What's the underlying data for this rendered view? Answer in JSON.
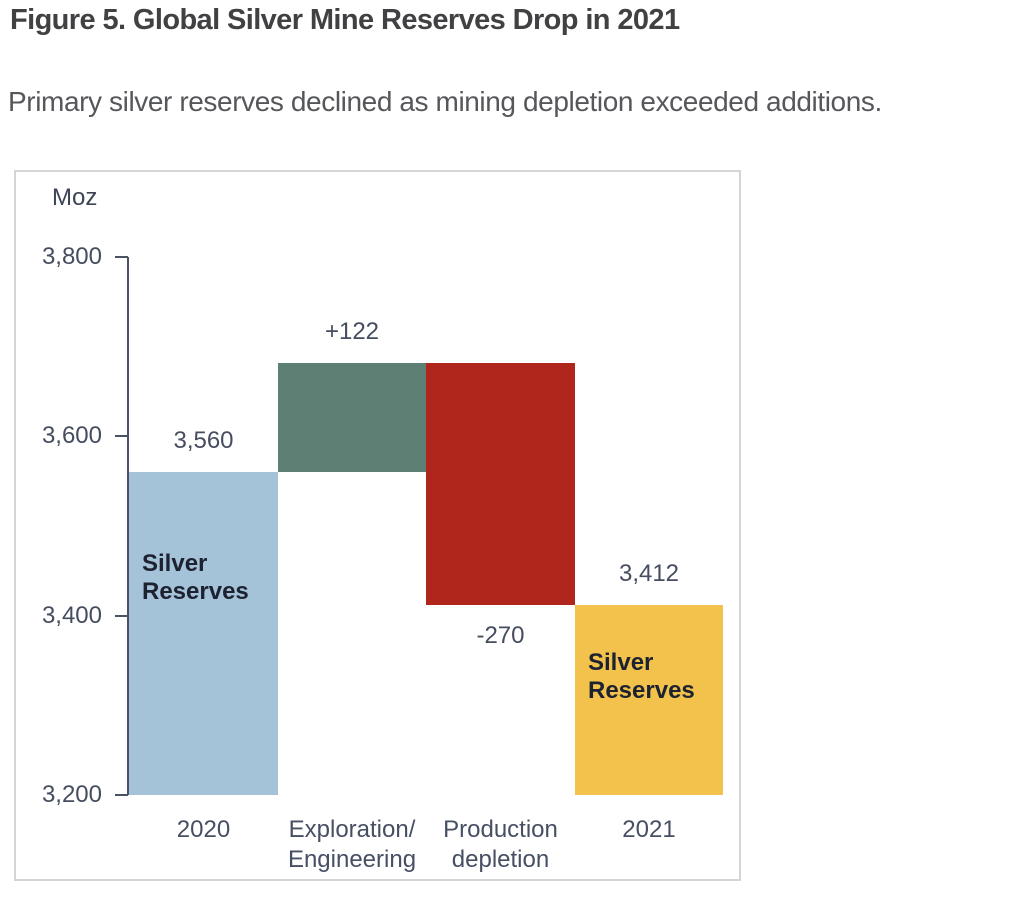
{
  "figure": {
    "title": "Figure 5. Global Silver Mine Reserves Drop in 2021",
    "subtitle": "Primary silver reserves declined as mining depletion exceeded additions."
  },
  "chart_data": {
    "type": "bar",
    "subtype": "waterfall",
    "title": "Figure 5. Global Silver Mine Reserves Drop in 2021",
    "xlabel": "",
    "ylabel": "Moz",
    "ylim": [
      3200,
      3800
    ],
    "grid": false,
    "legend_position": "none",
    "yticks": [
      {
        "value": 3800,
        "label": "3,800"
      },
      {
        "value": 3600,
        "label": "3,600"
      },
      {
        "value": 3400,
        "label": "3,400"
      },
      {
        "value": 3200,
        "label": "3,200"
      }
    ],
    "categories": [
      "2020",
      "Exploration/ Engineering",
      "Production depletion",
      "2021"
    ],
    "steps": [
      {
        "id": "2020-reserves",
        "category_lines": [
          "2020"
        ],
        "start": 3200,
        "end": 3560,
        "total": 3560,
        "label": "3,560",
        "label_position": "above",
        "inner_label_lines": [
          "Silver",
          "Reserves"
        ],
        "color": "#a4c2d8"
      },
      {
        "id": "exploration-engineering",
        "category_lines": [
          "Exploration/",
          "Engineering"
        ],
        "start": 3560,
        "end": 3682,
        "delta": 122,
        "label": "+122",
        "label_position": "above",
        "inner_label_lines": [],
        "color": "#5e7f74"
      },
      {
        "id": "production-depletion",
        "category_lines": [
          "Production",
          "depletion"
        ],
        "start": 3682,
        "end": 3412,
        "delta": -270,
        "label": "-270",
        "label_position": "below",
        "inner_label_lines": [],
        "color": "#b0251c"
      },
      {
        "id": "2021-reserves",
        "category_lines": [
          "2021"
        ],
        "start": 3200,
        "end": 3412,
        "total": 3412,
        "label": "3,412",
        "label_position": "above",
        "inner_label_lines": [
          "Silver",
          "Reserves"
        ],
        "color": "#f3c24c"
      }
    ]
  }
}
